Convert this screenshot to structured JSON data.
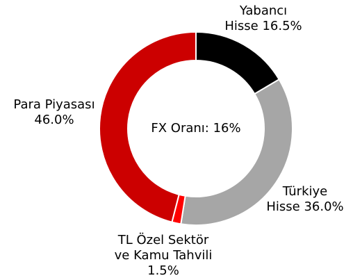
{
  "chart_data": {
    "type": "donut",
    "center_text": "FX Oranı: 16%",
    "categories": [
      "Yabancı Hisse",
      "Türkiye Hisse",
      "TL Özel Sektör ve Kamu Tahvili",
      "Para Piyasası"
    ],
    "values": [
      16.5,
      36.0,
      1.5,
      46.0
    ],
    "value_labels": [
      "16.5%",
      "36.0%",
      "1.5%",
      "46.0%"
    ],
    "colors": [
      "#000000",
      "#a6a6a6",
      "#ff0000",
      "#cc0000"
    ]
  }
}
